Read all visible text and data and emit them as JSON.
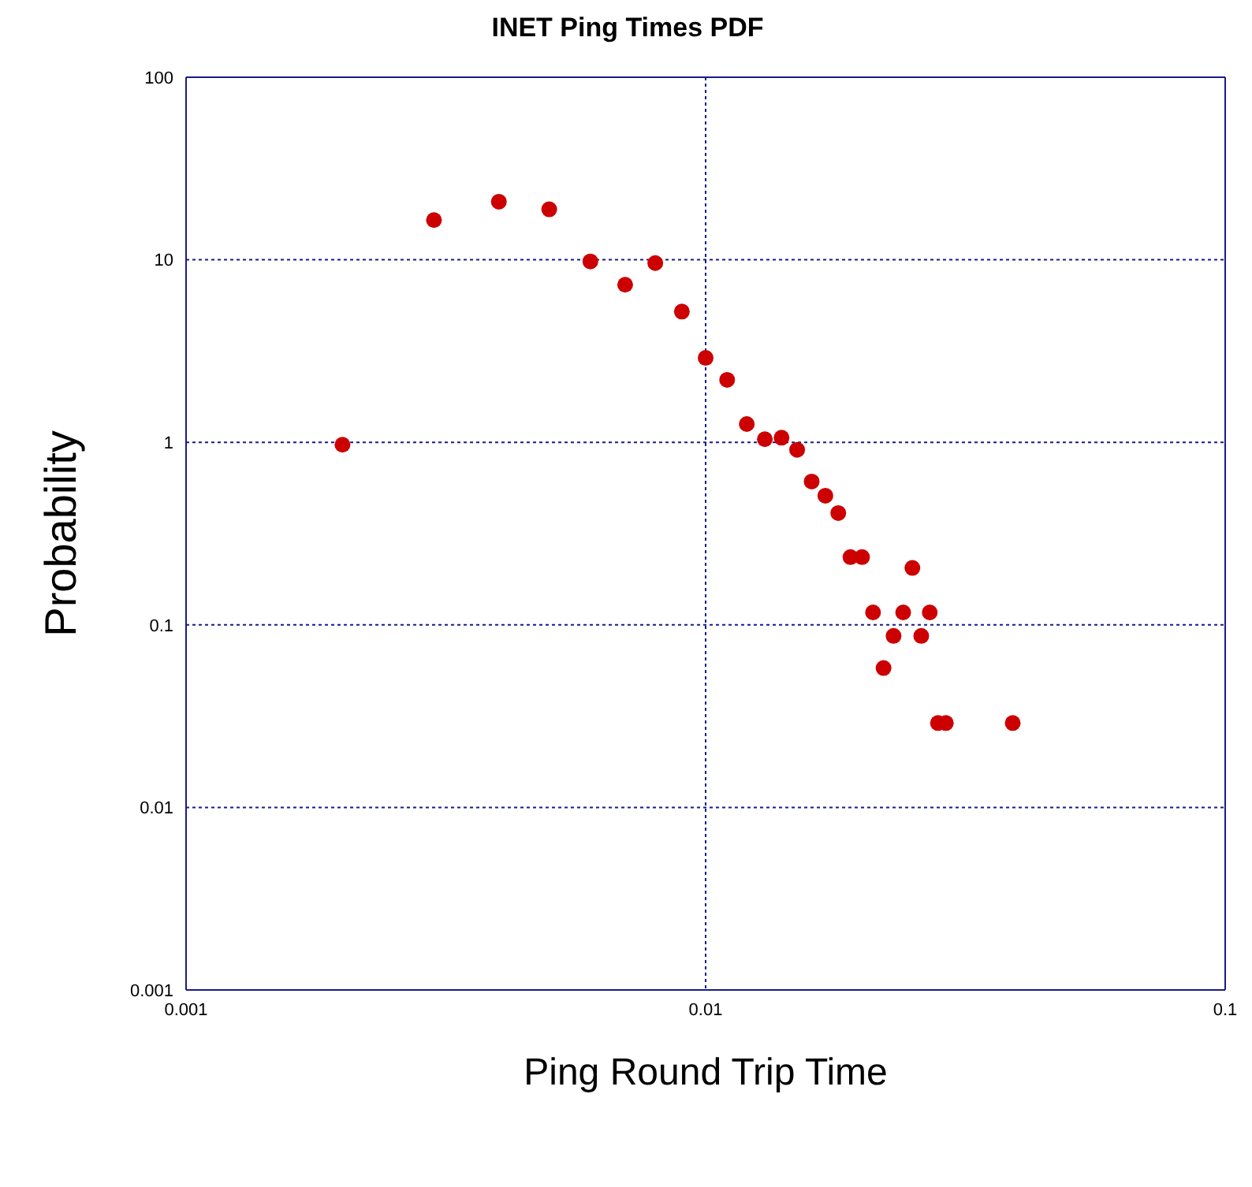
{
  "chart_data": {
    "type": "scatter",
    "title": "INET Ping Times PDF",
    "xlabel": "Ping Round Trip Time",
    "ylabel": "Probability",
    "log": "xy",
    "grid": true,
    "marker": "circle",
    "xlim": [
      0.001,
      0.1
    ],
    "xticks": [
      0.001,
      0.01,
      0.1
    ],
    "ylim": [
      0.001,
      100
    ],
    "yticks": [
      0.001,
      0.01,
      0.1,
      1,
      10,
      100
    ],
    "x": [
      0.002,
      0.003,
      0.004,
      0.005,
      0.006,
      0.007,
      0.008,
      0.009,
      0.01,
      0.011,
      0.012,
      0.013,
      0.014,
      0.015,
      0.016,
      0.017,
      0.018,
      0.019,
      0.02,
      0.021,
      0.022,
      0.023,
      0.024,
      0.025,
      0.026,
      0.027,
      0.028,
      0.029,
      0.039
    ],
    "series": [
      {
        "color": "#cc0000",
        "values": [
          0.97,
          16.5,
          20.8,
          18.9,
          9.8,
          7.3,
          9.6,
          5.2,
          2.9,
          2.2,
          1.26,
          1.04,
          1.06,
          0.91,
          0.61,
          0.51,
          0.41,
          0.235,
          0.235,
          0.117,
          0.058,
          0.087,
          0.117,
          0.205,
          0.087,
          0.117,
          0.029,
          0.029,
          0.029
        ]
      }
    ]
  }
}
